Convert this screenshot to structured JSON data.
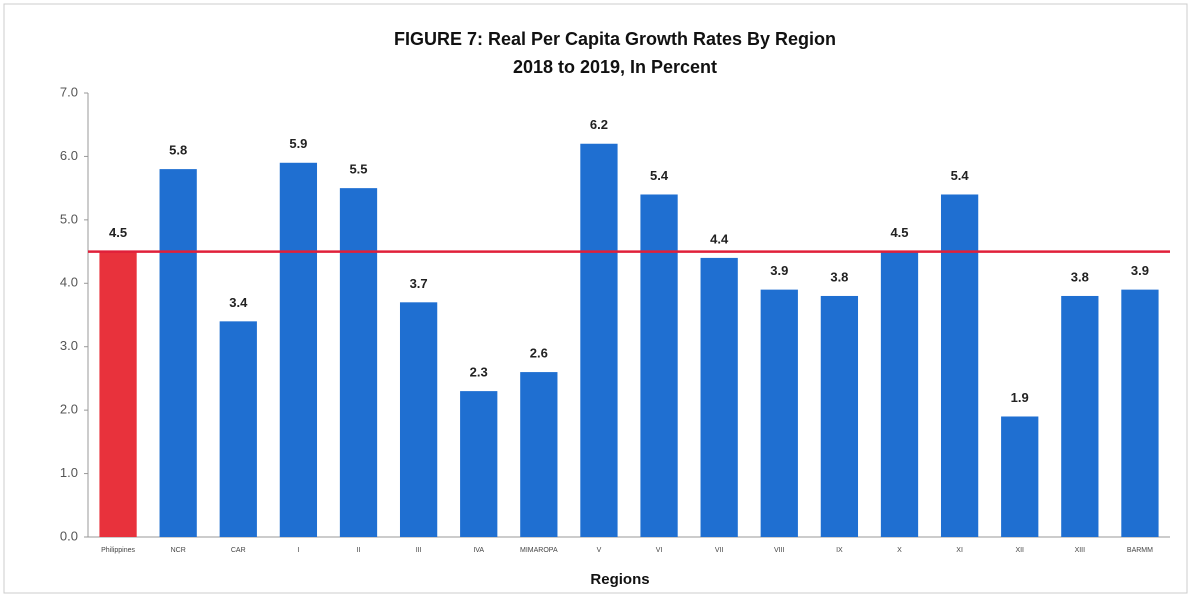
{
  "chart_data": {
    "type": "bar",
    "title": "FIGURE 7:  Real Per Capita Growth Rates By Region",
    "subtitle": "2018 to 2019, In Percent",
    "x_label": "Regions",
    "categories": [
      "Philippines",
      "NCR",
      "CAR",
      "I",
      "II",
      "III",
      "IVA",
      "MIMAROPA",
      "V",
      "VI",
      "VII",
      "VIII",
      "IX",
      "X",
      "XI",
      "XII",
      "XIII",
      "BARMM"
    ],
    "values": [
      4.5,
      5.8,
      3.4,
      5.9,
      5.5,
      3.7,
      2.3,
      2.6,
      6.2,
      5.4,
      4.4,
      3.9,
      3.8,
      4.5,
      5.4,
      1.9,
      3.8,
      3.9
    ],
    "colors": [
      "#e8323c",
      "#1f6fd1",
      "#1f6fd1",
      "#1f6fd1",
      "#1f6fd1",
      "#1f6fd1",
      "#1f6fd1",
      "#1f6fd1",
      "#1f6fd1",
      "#1f6fd1",
      "#1f6fd1",
      "#1f6fd1",
      "#1f6fd1",
      "#1f6fd1",
      "#1f6fd1",
      "#1f6fd1",
      "#1f6fd1",
      "#1f6fd1"
    ],
    "reference_line": true,
    "reference_color": "#e0203a",
    "ylim": [
      0,
      7
    ],
    "yticks": [
      {
        "value": 0,
        "label": "0.0"
      },
      {
        "value": 1,
        "label": "1.0"
      },
      {
        "value": 2,
        "label": "2.0"
      },
      {
        "value": 3,
        "label": "3.0"
      },
      {
        "value": 4,
        "label": "4.0"
      },
      {
        "value": 5,
        "label": "5.0"
      },
      {
        "value": 6,
        "label": "6.0"
      },
      {
        "value": 7,
        "label": "7.0"
      }
    ],
    "grid": false
  }
}
